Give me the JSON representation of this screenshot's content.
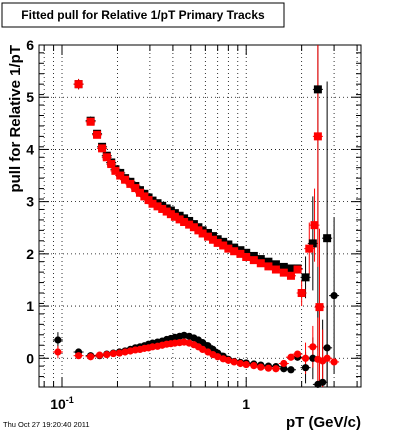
{
  "footer": {
    "timestamp": "Thu Oct 27 19:20:40 2011"
  },
  "colors": {
    "series_black": "#000000",
    "series_red": "#ff0000",
    "grid": "#000000"
  },
  "chart_data": {
    "type": "scatter",
    "title": "Fitted pull for Relative 1/pT  Primary Tracks",
    "xlabel": "pT (GeV/c)",
    "ylabel": "pull for Relative 1/pT",
    "xscale": "log",
    "xlim": [
      0.075,
      4.2
    ],
    "ylim": [
      -0.55,
      6.0
    ],
    "grid": true,
    "x_ticks": [
      {
        "value": 0.1,
        "base": "10",
        "exp": "-1"
      },
      {
        "value": 1,
        "base": "1",
        "exp": ""
      }
    ],
    "y_ticks": [
      0,
      1,
      2,
      3,
      4,
      5,
      6
    ],
    "series": [
      {
        "name": "",
        "marker": "square",
        "color": "#000000",
        "points": [
          [
            0.123,
            5.25
          ],
          [
            0.143,
            4.55
          ],
          [
            0.155,
            4.3
          ],
          [
            0.165,
            4.05
          ],
          [
            0.175,
            3.88
          ],
          [
            0.185,
            3.75
          ],
          [
            0.195,
            3.62
          ],
          [
            0.207,
            3.55
          ],
          [
            0.22,
            3.45
          ],
          [
            0.235,
            3.38
          ],
          [
            0.25,
            3.3
          ],
          [
            0.265,
            3.22
          ],
          [
            0.28,
            3.15
          ],
          [
            0.295,
            3.08
          ],
          [
            0.31,
            3.02
          ],
          [
            0.33,
            2.97
          ],
          [
            0.35,
            2.92
          ],
          [
            0.37,
            2.87
          ],
          [
            0.39,
            2.83
          ],
          [
            0.41,
            2.78
          ],
          [
            0.435,
            2.73
          ],
          [
            0.46,
            2.68
          ],
          [
            0.49,
            2.63
          ],
          [
            0.52,
            2.57
          ],
          [
            0.55,
            2.51
          ],
          [
            0.58,
            2.45
          ],
          [
            0.62,
            2.4
          ],
          [
            0.66,
            2.34
          ],
          [
            0.7,
            2.28
          ],
          [
            0.75,
            2.23
          ],
          [
            0.8,
            2.18
          ],
          [
            0.86,
            2.12
          ],
          [
            0.93,
            2.07
          ],
          [
            1.0,
            2.02
          ],
          [
            1.1,
            1.96
          ],
          [
            1.2,
            1.9
          ],
          [
            1.32,
            1.85
          ],
          [
            1.45,
            1.8
          ],
          [
            1.6,
            1.75
          ],
          [
            1.75,
            1.72
          ],
          [
            1.9,
            1.72
          ],
          [
            2.1,
            1.55
          ],
          [
            2.3,
            2.2
          ],
          [
            2.45,
            5.15
          ],
          [
            2.75,
            2.3
          ]
        ],
        "errors": [
          [
            0.123,
            0.1
          ],
          [
            0.143,
            0.08
          ],
          [
            0.155,
            0.06
          ],
          [
            2.1,
            0.4
          ],
          [
            2.3,
            0.9
          ],
          [
            2.45,
            5.0
          ],
          [
            2.75,
            3.0
          ]
        ]
      },
      {
        "name": "",
        "marker": "square",
        "color": "#ff0000",
        "points": [
          [
            0.123,
            5.25
          ],
          [
            0.143,
            4.53
          ],
          [
            0.155,
            4.28
          ],
          [
            0.165,
            4.02
          ],
          [
            0.175,
            3.85
          ],
          [
            0.185,
            3.72
          ],
          [
            0.195,
            3.59
          ],
          [
            0.207,
            3.5
          ],
          [
            0.22,
            3.42
          ],
          [
            0.235,
            3.34
          ],
          [
            0.25,
            3.26
          ],
          [
            0.265,
            3.17
          ],
          [
            0.28,
            3.1
          ],
          [
            0.295,
            3.03
          ],
          [
            0.31,
            2.96
          ],
          [
            0.33,
            2.91
          ],
          [
            0.35,
            2.86
          ],
          [
            0.37,
            2.81
          ],
          [
            0.39,
            2.76
          ],
          [
            0.41,
            2.71
          ],
          [
            0.435,
            2.66
          ],
          [
            0.46,
            2.61
          ],
          [
            0.49,
            2.56
          ],
          [
            0.52,
            2.51
          ],
          [
            0.55,
            2.45
          ],
          [
            0.58,
            2.39
          ],
          [
            0.62,
            2.33
          ],
          [
            0.66,
            2.27
          ],
          [
            0.7,
            2.21
          ],
          [
            0.75,
            2.16
          ],
          [
            0.8,
            2.1
          ],
          [
            0.86,
            2.05
          ],
          [
            0.93,
            2.0
          ],
          [
            1.0,
            1.94
          ],
          [
            1.1,
            1.88
          ],
          [
            1.2,
            1.82
          ],
          [
            1.32,
            1.76
          ],
          [
            1.45,
            1.7
          ],
          [
            1.6,
            1.64
          ],
          [
            1.75,
            1.58
          ],
          [
            1.9,
            1.7
          ],
          [
            2.0,
            1.25
          ],
          [
            2.2,
            2.1
          ],
          [
            2.35,
            2.55
          ],
          [
            2.45,
            4.25
          ],
          [
            2.5,
            0.98
          ]
        ],
        "errors": [
          [
            0.123,
            0.1
          ],
          [
            2.0,
            0.25
          ],
          [
            2.2,
            0.5
          ],
          [
            2.35,
            0.7
          ],
          [
            2.45,
            2.5
          ],
          [
            2.5,
            1.5
          ]
        ]
      },
      {
        "name": "",
        "marker": "circle",
        "color": "#000000",
        "points": [
          [
            0.095,
            0.35
          ],
          [
            0.123,
            0.12
          ],
          [
            0.143,
            0.05
          ],
          [
            0.16,
            0.05
          ],
          [
            0.175,
            0.08
          ],
          [
            0.19,
            0.1
          ],
          [
            0.205,
            0.12
          ],
          [
            0.22,
            0.14
          ],
          [
            0.235,
            0.17
          ],
          [
            0.25,
            0.2
          ],
          [
            0.265,
            0.22
          ],
          [
            0.28,
            0.24
          ],
          [
            0.295,
            0.27
          ],
          [
            0.31,
            0.29
          ],
          [
            0.33,
            0.31
          ],
          [
            0.35,
            0.33
          ],
          [
            0.37,
            0.36
          ],
          [
            0.39,
            0.38
          ],
          [
            0.41,
            0.4
          ],
          [
            0.435,
            0.42
          ],
          [
            0.46,
            0.44
          ],
          [
            0.49,
            0.42
          ],
          [
            0.52,
            0.39
          ],
          [
            0.55,
            0.35
          ],
          [
            0.58,
            0.3
          ],
          [
            0.62,
            0.24
          ],
          [
            0.66,
            0.17
          ],
          [
            0.7,
            0.1
          ],
          [
            0.75,
            0.04
          ],
          [
            0.8,
            -0.02
          ],
          [
            0.86,
            -0.06
          ],
          [
            0.93,
            -0.08
          ],
          [
            1.0,
            -0.09
          ],
          [
            1.1,
            -0.11
          ],
          [
            1.2,
            -0.13
          ],
          [
            1.32,
            -0.15
          ],
          [
            1.45,
            -0.16
          ],
          [
            1.6,
            -0.2
          ],
          [
            1.75,
            -0.22
          ],
          [
            1.9,
            0.02
          ],
          [
            2.1,
            -0.18
          ],
          [
            2.3,
            0.0
          ],
          [
            2.45,
            -0.5
          ],
          [
            2.6,
            -0.46
          ],
          [
            2.75,
            0.2
          ],
          [
            3.0,
            1.2
          ]
        ],
        "errors": [
          [
            0.095,
            0.15
          ],
          [
            2.1,
            0.3
          ],
          [
            2.3,
            0.4
          ],
          [
            2.45,
            1.5
          ],
          [
            2.6,
            1.2
          ],
          [
            2.75,
            0.8
          ],
          [
            3.0,
            1.5
          ]
        ]
      },
      {
        "name": "",
        "marker": "circle",
        "color": "#ff0000",
        "points": [
          [
            0.095,
            0.12
          ],
          [
            0.123,
            0.05
          ],
          [
            0.143,
            0.03
          ],
          [
            0.16,
            0.06
          ],
          [
            0.175,
            0.07
          ],
          [
            0.19,
            0.09
          ],
          [
            0.205,
            0.1
          ],
          [
            0.22,
            0.12
          ],
          [
            0.235,
            0.14
          ],
          [
            0.25,
            0.16
          ],
          [
            0.265,
            0.17
          ],
          [
            0.28,
            0.19
          ],
          [
            0.295,
            0.2
          ],
          [
            0.31,
            0.22
          ],
          [
            0.33,
            0.23
          ],
          [
            0.35,
            0.25
          ],
          [
            0.37,
            0.27
          ],
          [
            0.39,
            0.28
          ],
          [
            0.41,
            0.29
          ],
          [
            0.435,
            0.3
          ],
          [
            0.46,
            0.31
          ],
          [
            0.49,
            0.29
          ],
          [
            0.52,
            0.26
          ],
          [
            0.55,
            0.22
          ],
          [
            0.58,
            0.17
          ],
          [
            0.62,
            0.12
          ],
          [
            0.66,
            0.07
          ],
          [
            0.7,
            0.03
          ],
          [
            0.75,
            -0.01
          ],
          [
            0.8,
            -0.04
          ],
          [
            0.86,
            -0.07
          ],
          [
            0.93,
            -0.1
          ],
          [
            1.0,
            -0.12
          ],
          [
            1.1,
            -0.14
          ],
          [
            1.2,
            -0.17
          ],
          [
            1.32,
            -0.19
          ],
          [
            1.45,
            -0.2
          ],
          [
            1.6,
            -0.1
          ],
          [
            1.75,
            0.02
          ],
          [
            1.9,
            0.08
          ],
          [
            2.1,
            0.0
          ],
          [
            2.3,
            0.22
          ],
          [
            2.45,
            -0.02
          ],
          [
            2.6,
            -0.05
          ],
          [
            2.75,
            0.0
          ],
          [
            3.0,
            -0.07
          ]
        ],
        "errors": [
          [
            0.095,
            0.12
          ],
          [
            2.1,
            0.3
          ],
          [
            2.3,
            0.4
          ],
          [
            2.45,
            0.8
          ],
          [
            2.6,
            0.6
          ]
        ]
      }
    ]
  }
}
